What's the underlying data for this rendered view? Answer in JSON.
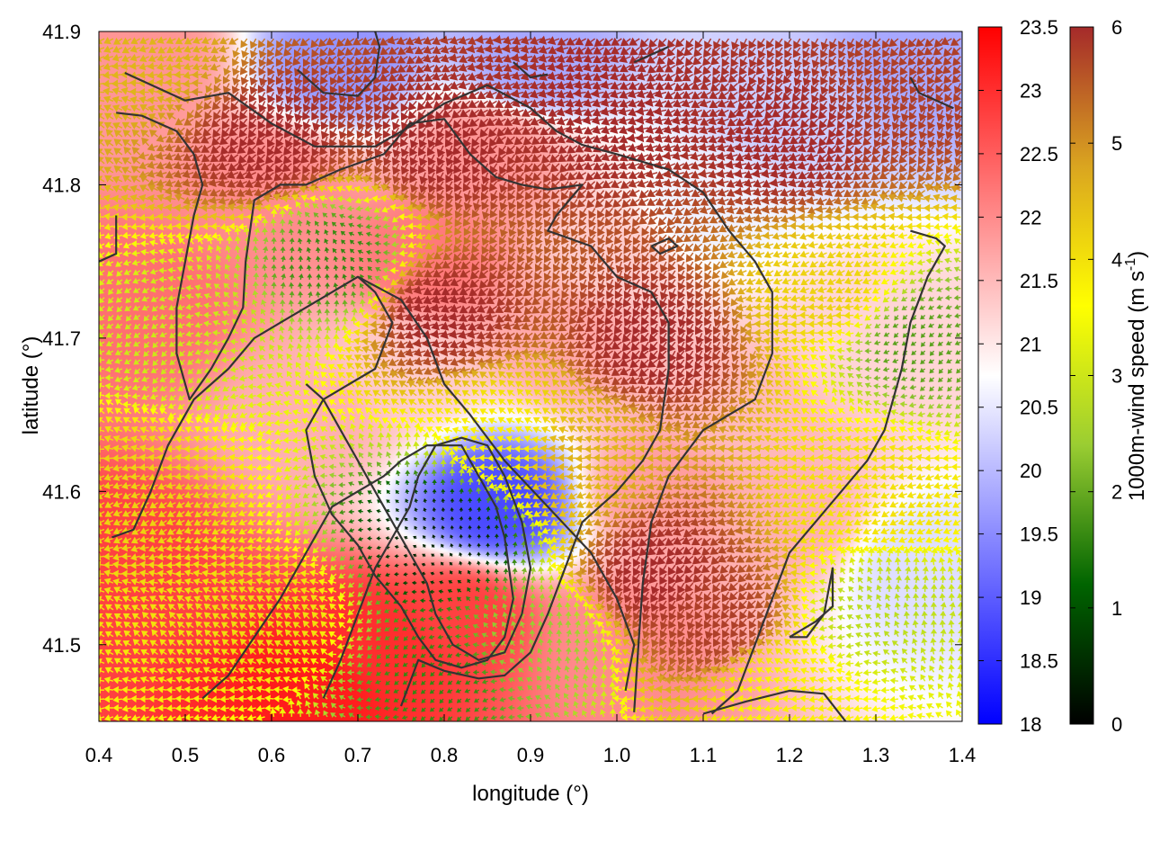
{
  "chart_data": {
    "type": "heatmap",
    "subtype": "temperature field with wind-vector arrows and contour lines",
    "title": "",
    "xlabel": "longitude (°)",
    "ylabel": "latitude (°)",
    "xlim": [
      0.4,
      1.4
    ],
    "ylim": [
      41.45,
      41.9
    ],
    "x_ticks": [
      0.4,
      0.5,
      0.6,
      0.7,
      0.8,
      0.9,
      1.0,
      1.1,
      1.2,
      1.3,
      1.4
    ],
    "x_tick_labels": [
      "0.4",
      "0.5",
      "0.6",
      "0.7",
      "0.8",
      "0.9",
      "1.0",
      "1.1",
      "1.2",
      "1.3",
      "1.4"
    ],
    "y_ticks": [
      41.5,
      41.6,
      41.7,
      41.8,
      41.9
    ],
    "y_tick_labels": [
      "41.5",
      "41.6",
      "41.7",
      "41.8",
      "41.9"
    ],
    "grid": false,
    "temperature_colorbar": {
      "range": [
        18,
        23.5
      ],
      "ticks": [
        18,
        18.5,
        19,
        19.5,
        20,
        20.5,
        21,
        21.5,
        22,
        22.5,
        23,
        23.5
      ],
      "tick_labels": [
        "18",
        "18.5",
        "19",
        "19.5",
        "20",
        "20.5",
        "21",
        "21.5",
        "22",
        "22.5",
        "23",
        "23.5"
      ],
      "label": "",
      "colors": [
        "#0000ff",
        "#ffffff",
        "#ff0000"
      ]
    },
    "wind_colorbar": {
      "range": [
        0,
        6
      ],
      "ticks": [
        0,
        1,
        2,
        3,
        4,
        5,
        6
      ],
      "tick_labels": [
        "0",
        "1",
        "2",
        "3",
        "4",
        "5",
        "6"
      ],
      "label": "1000m-wind speed (m s",
      "label_sup": "-1",
      "label_end": ")",
      "colors": [
        "#000000",
        "#006400",
        "#9acd32",
        "#ffff00",
        "#daa520",
        "#a52a2a"
      ]
    },
    "temperature_field_approx": [
      {
        "lon": 0.45,
        "lat": 41.88,
        "t": 21.9
      },
      {
        "lon": 0.6,
        "lat": 41.8,
        "t": 22.0
      },
      {
        "lon": 0.68,
        "lat": 41.88,
        "t": 19.6
      },
      {
        "lon": 0.85,
        "lat": 41.82,
        "t": 21.9
      },
      {
        "lon": 0.9,
        "lat": 41.88,
        "t": 19.8
      },
      {
        "lon": 1.0,
        "lat": 41.75,
        "t": 21.3
      },
      {
        "lon": 1.1,
        "lat": 41.78,
        "t": 20.6
      },
      {
        "lon": 1.2,
        "lat": 41.85,
        "t": 20.2
      },
      {
        "lon": 1.35,
        "lat": 41.88,
        "t": 19.8
      },
      {
        "lon": 1.3,
        "lat": 41.7,
        "t": 21.2
      },
      {
        "lon": 1.35,
        "lat": 41.55,
        "t": 20.4
      },
      {
        "lon": 1.2,
        "lat": 41.58,
        "t": 21.6
      },
      {
        "lon": 1.05,
        "lat": 41.6,
        "t": 21.8
      },
      {
        "lon": 0.86,
        "lat": 41.59,
        "t": 18.8
      },
      {
        "lon": 0.82,
        "lat": 41.52,
        "t": 22.8
      },
      {
        "lon": 0.73,
        "lat": 41.5,
        "t": 23.0
      },
      {
        "lon": 0.65,
        "lat": 41.47,
        "t": 23.2
      },
      {
        "lon": 0.43,
        "lat": 41.55,
        "t": 22.8
      },
      {
        "lon": 0.45,
        "lat": 41.72,
        "t": 22.3
      },
      {
        "lon": 0.65,
        "lat": 41.65,
        "t": 21.6
      },
      {
        "lon": 0.75,
        "lat": 41.68,
        "t": 21.3
      },
      {
        "lon": 0.78,
        "lat": 41.75,
        "t": 22.2
      },
      {
        "lon": 0.95,
        "lat": 41.7,
        "t": 21.7
      },
      {
        "lon": 1.15,
        "lat": 41.65,
        "t": 21.5
      },
      {
        "lon": 1.0,
        "lat": 41.5,
        "t": 22.0
      }
    ],
    "wind_speed_field_approx": [
      {
        "lon": 0.45,
        "lat": 41.88,
        "s": 4.6
      },
      {
        "lon": 0.6,
        "lat": 41.83,
        "s": 6.0
      },
      {
        "lon": 0.8,
        "lat": 41.83,
        "s": 6.0
      },
      {
        "lon": 1.0,
        "lat": 41.85,
        "s": 6.0
      },
      {
        "lon": 1.2,
        "lat": 41.83,
        "s": 6.0
      },
      {
        "lon": 1.35,
        "lat": 41.87,
        "s": 5.8
      },
      {
        "lon": 0.8,
        "lat": 41.72,
        "s": 6.0
      },
      {
        "lon": 1.05,
        "lat": 41.7,
        "s": 6.0
      },
      {
        "lon": 1.05,
        "lat": 41.55,
        "s": 6.0
      },
      {
        "lon": 1.12,
        "lat": 41.52,
        "s": 5.8
      },
      {
        "lon": 0.68,
        "lat": 41.75,
        "s": 1.6
      },
      {
        "lon": 0.5,
        "lat": 41.7,
        "s": 3.0
      },
      {
        "lon": 0.45,
        "lat": 41.6,
        "s": 4.2
      },
      {
        "lon": 0.6,
        "lat": 41.52,
        "s": 4.1
      },
      {
        "lon": 0.8,
        "lat": 41.57,
        "s": 0.4
      },
      {
        "lon": 0.8,
        "lat": 41.48,
        "s": 1.6
      },
      {
        "lon": 0.9,
        "lat": 41.5,
        "s": 2.4
      },
      {
        "lon": 0.88,
        "lat": 41.63,
        "s": 3.8
      },
      {
        "lon": 0.95,
        "lat": 41.62,
        "s": 4.6
      },
      {
        "lon": 1.25,
        "lat": 41.73,
        "s": 4.2
      },
      {
        "lon": 1.35,
        "lat": 41.7,
        "s": 1.9
      },
      {
        "lon": 1.3,
        "lat": 41.6,
        "s": 4.0
      },
      {
        "lon": 1.3,
        "lat": 41.52,
        "s": 2.8
      },
      {
        "lon": 1.2,
        "lat": 41.47,
        "s": 3.8
      }
    ],
    "contours": [
      [
        [
          0.43,
          41.873
        ],
        [
          0.5,
          41.855
        ],
        [
          0.55,
          41.86
        ],
        [
          0.6,
          41.84
        ],
        [
          0.65,
          41.825
        ],
        [
          0.72,
          41.825
        ],
        [
          0.76,
          41.838
        ],
        [
          0.8,
          41.853
        ],
        [
          0.85,
          41.865
        ],
        [
          0.9,
          41.85
        ],
        [
          0.93,
          41.835
        ],
        [
          0.96,
          41.826
        ],
        [
          1.0,
          41.82
        ],
        [
          1.06,
          41.81
        ],
        [
          1.1,
          41.795
        ],
        [
          1.13,
          41.77
        ],
        [
          1.16,
          41.75
        ],
        [
          1.18,
          41.73
        ],
        [
          1.18,
          41.69
        ],
        [
          1.16,
          41.66
        ],
        [
          1.1,
          41.64
        ],
        [
          1.06,
          41.61
        ],
        [
          1.04,
          41.58
        ],
        [
          1.03,
          41.54
        ],
        [
          1.025,
          41.5
        ],
        [
          1.02,
          41.456
        ]
      ],
      [
        [
          0.42,
          41.847
        ],
        [
          0.45,
          41.845
        ],
        [
          0.49,
          41.835
        ],
        [
          0.51,
          41.82
        ],
        [
          0.52,
          41.8
        ],
        [
          0.51,
          41.78
        ],
        [
          0.5,
          41.75
        ],
        [
          0.49,
          41.72
        ],
        [
          0.49,
          41.69
        ],
        [
          0.505,
          41.66
        ],
        [
          0.53,
          41.68
        ],
        [
          0.55,
          41.7
        ],
        [
          0.567,
          41.72
        ],
        [
          0.57,
          41.75
        ],
        [
          0.58,
          41.79
        ],
        [
          0.61,
          41.8
        ],
        [
          0.64,
          41.8
        ],
        [
          0.68,
          41.81
        ],
        [
          0.73,
          41.82
        ],
        [
          0.76,
          41.84
        ],
        [
          0.8,
          41.843
        ],
        [
          0.83,
          41.82
        ],
        [
          0.86,
          41.805
        ],
        [
          0.89,
          41.8
        ],
        [
          0.92,
          41.797
        ],
        [
          0.96,
          41.8
        ],
        [
          0.93,
          41.78
        ],
        [
          0.92,
          41.77
        ],
        [
          0.97,
          41.76
        ],
        [
          1.0,
          41.74
        ],
        [
          1.04,
          41.73
        ],
        [
          1.06,
          41.71
        ],
        [
          1.06,
          41.68
        ],
        [
          1.05,
          41.64
        ],
        [
          1.03,
          41.62
        ],
        [
          1.0,
          41.6
        ],
        [
          0.96,
          41.58
        ],
        [
          0.94,
          41.55
        ],
        [
          0.92,
          41.52
        ],
        [
          0.9,
          41.495
        ],
        [
          0.87,
          41.48
        ],
        [
          0.84,
          41.478
        ],
        [
          0.8,
          41.483
        ],
        [
          0.77,
          41.49
        ],
        [
          0.76,
          41.475
        ],
        [
          0.75,
          41.46
        ]
      ],
      [
        [
          0.415,
          41.57
        ],
        [
          0.44,
          41.575
        ],
        [
          0.46,
          41.6
        ],
        [
          0.48,
          41.63
        ],
        [
          0.51,
          41.66
        ],
        [
          0.55,
          41.68
        ],
        [
          0.58,
          41.7
        ],
        [
          0.61,
          41.71
        ],
        [
          0.64,
          41.72
        ],
        [
          0.67,
          41.73
        ],
        [
          0.7,
          41.74
        ],
        [
          0.75,
          41.725
        ],
        [
          0.78,
          41.7
        ],
        [
          0.8,
          41.67
        ],
        [
          0.83,
          41.65
        ],
        [
          0.87,
          41.62
        ],
        [
          0.92,
          41.59
        ],
        [
          0.97,
          41.56
        ],
        [
          1.0,
          41.53
        ],
        [
          1.02,
          41.5
        ],
        [
          1.01,
          41.47
        ]
      ],
      [
        [
          0.52,
          41.465
        ],
        [
          0.55,
          41.48
        ],
        [
          0.58,
          41.505
        ],
        [
          0.61,
          41.53
        ],
        [
          0.64,
          41.56
        ],
        [
          0.67,
          41.59
        ],
        [
          0.7,
          41.6
        ],
        [
          0.73,
          41.61
        ],
        [
          0.75,
          41.62
        ],
        [
          0.78,
          41.63
        ],
        [
          0.82,
          41.63
        ],
        [
          0.84,
          41.61
        ],
        [
          0.86,
          41.59
        ],
        [
          0.87,
          41.57
        ],
        [
          0.875,
          41.55
        ],
        [
          0.88,
          41.53
        ],
        [
          0.87,
          41.505
        ],
        [
          0.85,
          41.49
        ],
        [
          0.82,
          41.485
        ],
        [
          0.79,
          41.49
        ],
        [
          0.77,
          41.505
        ],
        [
          0.75,
          41.525
        ],
        [
          0.72,
          41.545
        ],
        [
          0.7,
          41.565
        ],
        [
          0.67,
          41.585
        ],
        [
          0.65,
          41.61
        ],
        [
          0.64,
          41.64
        ],
        [
          0.66,
          41.66
        ],
        [
          0.69,
          41.67
        ],
        [
          0.72,
          41.68
        ],
        [
          0.74,
          41.71
        ],
        [
          0.72,
          41.73
        ],
        [
          0.7,
          41.74
        ]
      ],
      [
        [
          0.66,
          41.465
        ],
        [
          0.68,
          41.49
        ],
        [
          0.7,
          41.52
        ],
        [
          0.72,
          41.55
        ],
        [
          0.74,
          41.57
        ],
        [
          0.76,
          41.59
        ],
        [
          0.77,
          41.61
        ],
        [
          0.79,
          41.63
        ],
        [
          0.82,
          41.635
        ],
        [
          0.85,
          41.63
        ],
        [
          0.87,
          41.61
        ],
        [
          0.89,
          41.58
        ],
        [
          0.9,
          41.55
        ],
        [
          0.89,
          41.52
        ],
        [
          0.87,
          41.495
        ],
        [
          0.84,
          41.49
        ],
        [
          0.81,
          41.5
        ],
        [
          0.79,
          41.52
        ],
        [
          0.78,
          41.54
        ],
        [
          0.76,
          41.56
        ],
        [
          0.74,
          41.58
        ],
        [
          0.72,
          41.6
        ],
        [
          0.7,
          41.62
        ],
        [
          0.68,
          41.64
        ],
        [
          0.66,
          41.66
        ],
        [
          0.64,
          41.67
        ]
      ],
      [
        [
          0.63,
          41.875
        ],
        [
          0.66,
          41.86
        ],
        [
          0.7,
          41.858
        ],
        [
          0.72,
          41.87
        ],
        [
          0.725,
          41.89
        ],
        [
          0.72,
          41.9
        ]
      ],
      [
        [
          0.4,
          41.75
        ],
        [
          0.42,
          41.755
        ],
        [
          0.42,
          41.78
        ]
      ],
      [
        [
          1.04,
          41.76
        ],
        [
          1.06,
          41.765
        ],
        [
          1.07,
          41.76
        ],
        [
          1.05,
          41.755
        ],
        [
          1.04,
          41.76
        ]
      ],
      [
        [
          1.2,
          41.505
        ],
        [
          1.23,
          41.515
        ],
        [
          1.25,
          41.525
        ],
        [
          1.25,
          41.55
        ],
        [
          1.24,
          41.52
        ],
        [
          1.22,
          41.505
        ],
        [
          1.2,
          41.505
        ]
      ],
      [
        [
          1.1,
          41.455
        ],
        [
          1.15,
          41.463
        ],
        [
          1.2,
          41.47
        ],
        [
          1.24,
          41.468
        ],
        [
          1.265,
          41.45
        ]
      ],
      [
        [
          1.34,
          41.77
        ],
        [
          1.37,
          41.765
        ],
        [
          1.38,
          41.76
        ],
        [
          1.36,
          41.74
        ],
        [
          1.34,
          41.71
        ],
        [
          1.33,
          41.68
        ],
        [
          1.31,
          41.64
        ],
        [
          1.29,
          41.62
        ],
        [
          1.26,
          41.6
        ],
        [
          1.23,
          41.58
        ],
        [
          1.2,
          41.56
        ],
        [
          1.18,
          41.53
        ],
        [
          1.16,
          41.5
        ],
        [
          1.14,
          41.47
        ],
        [
          1.11,
          41.455
        ]
      ],
      [
        [
          1.34,
          41.87
        ],
        [
          1.35,
          41.86
        ],
        [
          1.37,
          41.855
        ],
        [
          1.39,
          41.85
        ]
      ],
      [
        [
          1.02,
          41.88
        ],
        [
          1.04,
          41.885
        ],
        [
          1.06,
          41.89
        ]
      ],
      [
        [
          0.88,
          41.88
        ],
        [
          0.9,
          41.87
        ],
        [
          0.92,
          41.872
        ]
      ]
    ]
  }
}
